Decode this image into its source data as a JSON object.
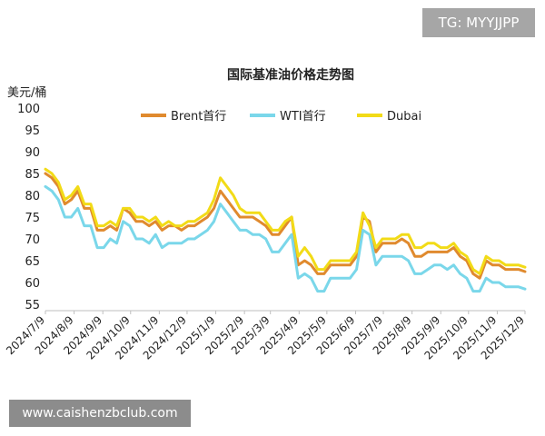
{
  "watermark_top": "TG: MYYJJPP",
  "watermark_bottom": "www.caishenzbclub.com",
  "chart_data": {
    "type": "line",
    "title": "国际基准油价格走势图",
    "ylabel": "美元/桶",
    "ylim": [
      55,
      100
    ],
    "yticks": [
      55,
      60,
      65,
      70,
      75,
      80,
      85,
      90,
      95,
      100
    ],
    "xticks": [
      "2024/7/9",
      "2024/8/9",
      "2024/9/9",
      "2024/10/9",
      "2024/11/9",
      "2024/12/9",
      "2025/1/9",
      "2025/2/9",
      "2025/3/9",
      "2025/4/9",
      "2025/5/9",
      "2025/6/9",
      "2025/7/9",
      "2025/8/9",
      "2025/9/9",
      "2025/10/9",
      "2025/11/9",
      "2025/12/9"
    ],
    "legend_position": "top",
    "grid": false,
    "x_start": "2024/7/9",
    "x": [
      "2024/7/9",
      "2024/7/16",
      "2024/7/23",
      "2024/7/30",
      "2024/8/6",
      "2024/8/13",
      "2024/8/20",
      "2024/8/27",
      "2024/9/3",
      "2024/9/10",
      "2024/9/17",
      "2024/9/24",
      "2024/10/1",
      "2024/10/8",
      "2024/10/15",
      "2024/10/22",
      "2024/10/29",
      "2024/11/5",
      "2024/11/12",
      "2024/11/19",
      "2024/11/26",
      "2024/12/3",
      "2024/12/10",
      "2024/12/17",
      "2024/12/24",
      "2024/12/31",
      "2025/1/7",
      "2025/1/14",
      "2025/1/21",
      "2025/1/28",
      "2025/2/4",
      "2025/2/11",
      "2025/2/18",
      "2025/2/25",
      "2025/3/4",
      "2025/3/11",
      "2025/3/18",
      "2025/3/25",
      "2025/4/1",
      "2025/4/8",
      "2025/4/15",
      "2025/4/22",
      "2025/4/29",
      "2025/5/6",
      "2025/5/13",
      "2025/5/20",
      "2025/5/27",
      "2025/6/3",
      "2025/6/10",
      "2025/6/17",
      "2025/6/24",
      "2025/7/1",
      "2025/7/8",
      "2025/7/15",
      "2025/7/22",
      "2025/7/29",
      "2025/8/5",
      "2025/8/12",
      "2025/8/19",
      "2025/8/26",
      "2025/9/2",
      "2025/9/9",
      "2025/9/16",
      "2025/9/23",
      "2025/9/30",
      "2025/10/7",
      "2025/10/14",
      "2025/10/21",
      "2025/10/28",
      "2025/11/4",
      "2025/11/11",
      "2025/11/18",
      "2025/11/25",
      "2025/12/2",
      "2025/12/9"
    ],
    "series": [
      {
        "name": "Brent首行",
        "color": "#e08a2e",
        "values": [
          85,
          84,
          82,
          78,
          79,
          81,
          77,
          77,
          72,
          72,
          73,
          72,
          77,
          76,
          74,
          74,
          73,
          74,
          72,
          73,
          73,
          72,
          73,
          73,
          74,
          75,
          77,
          81,
          79,
          77,
          75,
          75,
          75,
          74,
          73,
          71,
          71,
          73,
          75,
          64,
          65,
          64,
          62,
          62,
          64,
          64,
          64,
          64,
          66,
          75,
          74,
          67,
          69,
          69,
          69,
          70,
          69,
          66,
          66,
          67,
          67,
          67,
          67,
          68,
          66,
          65,
          62,
          61,
          65,
          64,
          64,
          63,
          63,
          63,
          62.5
        ]
      },
      {
        "name": "WTI首行",
        "color": "#7ad7ea",
        "values": [
          82,
          81,
          79,
          75,
          75,
          77,
          73,
          73,
          68,
          68,
          70,
          69,
          74,
          73,
          70,
          70,
          69,
          71,
          68,
          69,
          69,
          69,
          70,
          70,
          71,
          72,
          74,
          78,
          76,
          74,
          72,
          72,
          71,
          71,
          70,
          67,
          67,
          69,
          71,
          61,
          62,
          61,
          58,
          58,
          61,
          61,
          61,
          61,
          63,
          72,
          71,
          64,
          66,
          66,
          66,
          66,
          65,
          62,
          62,
          63,
          64,
          64,
          63,
          64,
          62,
          61,
          58,
          58,
          61,
          60,
          60,
          59,
          59,
          59,
          58.5
        ]
      },
      {
        "name": "Dubai",
        "color": "#f2db17",
        "values": [
          86,
          85,
          83,
          79,
          80,
          82,
          78,
          78,
          73,
          73,
          74,
          73,
          77,
          77,
          75,
          75,
          74,
          75,
          73,
          74,
          73,
          73,
          74,
          74,
          75,
          76,
          79,
          84,
          82,
          80,
          77,
          76,
          76,
          76,
          74,
          72,
          72,
          74,
          75,
          66,
          68,
          66,
          63,
          63,
          65,
          65,
          65,
          65,
          67,
          76,
          73,
          68,
          70,
          70,
          70,
          71,
          71,
          68,
          68,
          69,
          69,
          68,
          68,
          69,
          67,
          66,
          63,
          62,
          66,
          65,
          65,
          64,
          64,
          64,
          63.5
        ]
      }
    ]
  }
}
